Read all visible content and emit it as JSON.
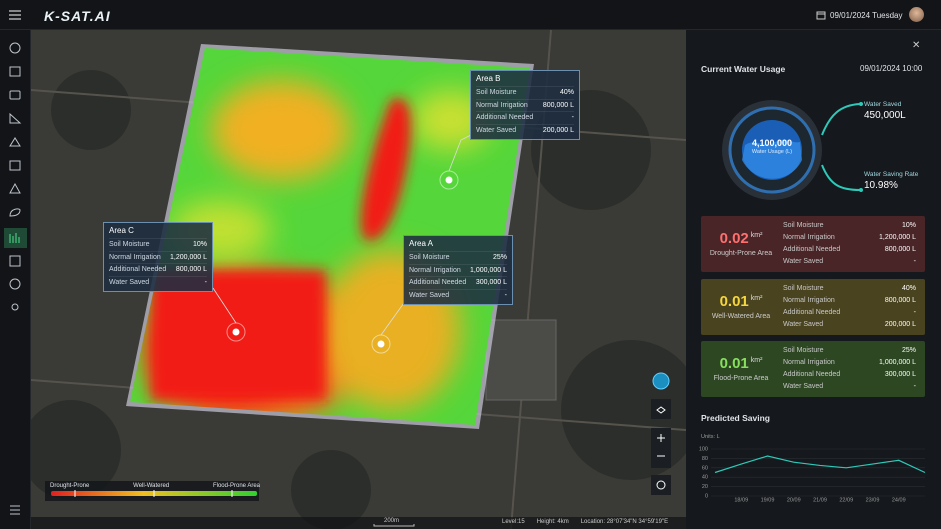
{
  "header": {
    "logo": "K-SAT.AI",
    "date": "09/01/2024 Tuesday"
  },
  "map": {
    "popups": [
      {
        "title": "Area B",
        "rows": [
          {
            "label": "Soil Moisture",
            "value": "40%"
          },
          {
            "label": "Normal Irrigation",
            "value": "800,000 L"
          },
          {
            "label": "Additional Needed",
            "value": "-"
          },
          {
            "label": "Water Saved",
            "value": "200,000 L"
          }
        ]
      },
      {
        "title": "Area C",
        "rows": [
          {
            "label": "Soil Moisture",
            "value": "10%"
          },
          {
            "label": "Normal Irrigation",
            "value": "1,200,000 L"
          },
          {
            "label": "Additional Needed",
            "value": "800,000 L"
          },
          {
            "label": "Water Saved",
            "value": "-"
          }
        ]
      },
      {
        "title": "Area A",
        "rows": [
          {
            "label": "Soil Moisture",
            "value": "25%"
          },
          {
            "label": "Normal Irrigation",
            "value": "1,000,000 L"
          },
          {
            "label": "Additional Needed",
            "value": "300,000 L"
          },
          {
            "label": "Water Saved",
            "value": "-"
          }
        ]
      }
    ],
    "legend": [
      "Drought-Prone",
      "Well-Watered",
      "Flood-Prone Area"
    ],
    "scale": "200m",
    "status": [
      "Level:15",
      "Height: 4km",
      "Location: 28°07'34\"N 34°59'19\"E"
    ]
  },
  "panel": {
    "title": "Current Water Usage",
    "time": "09/01/2024 10:00",
    "usage": "4,100,000",
    "usage_label": "Water Usage (L)",
    "saved_label": "Water Saved",
    "saved": "450,000L",
    "rate_label": "Water Saving Rate",
    "rate": "10.98%",
    "cards": [
      {
        "value": "0.02",
        "unit": "km²",
        "name": "Drought-Prone Area",
        "rows": [
          {
            "label": "Soil Moisture",
            "value": "10%"
          },
          {
            "label": "Normal Irrigation",
            "value": "1,200,000 L"
          },
          {
            "label": "Additional Needed",
            "value": "800,000 L"
          },
          {
            "label": "Water Saved",
            "value": "-"
          }
        ]
      },
      {
        "value": "0.01",
        "unit": "km²",
        "name": "Well-Watered Area",
        "rows": [
          {
            "label": "Soil Moisture",
            "value": "40%"
          },
          {
            "label": "Normal Irrigation",
            "value": "800,000 L"
          },
          {
            "label": "Additional Needed",
            "value": "-"
          },
          {
            "label": "Water Saved",
            "value": "200,000 L"
          }
        ]
      },
      {
        "value": "0.01",
        "unit": "km²",
        "name": "Flood-Prone Area",
        "rows": [
          {
            "label": "Soil Moisture",
            "value": "25%"
          },
          {
            "label": "Normal Irrigation",
            "value": "1,000,000 L"
          },
          {
            "label": "Additional Needed",
            "value": "300,000 L"
          },
          {
            "label": "Water Saved",
            "value": "-"
          }
        ]
      }
    ]
  },
  "chart_data": {
    "type": "line",
    "title": "Predicted Saving",
    "y_label": "Units: L",
    "categories": [
      null,
      "18/09",
      "19/09",
      "20/09",
      "21/09",
      "22/09",
      "23/09",
      "24/09",
      null
    ],
    "values": [
      50,
      68,
      85,
      72,
      65,
      60,
      68,
      76,
      50
    ],
    "color": "#2ec9b8",
    "ylim": [
      0,
      100
    ],
    "yticks": [
      0,
      20,
      40,
      60,
      80,
      100
    ],
    "grid": true
  }
}
